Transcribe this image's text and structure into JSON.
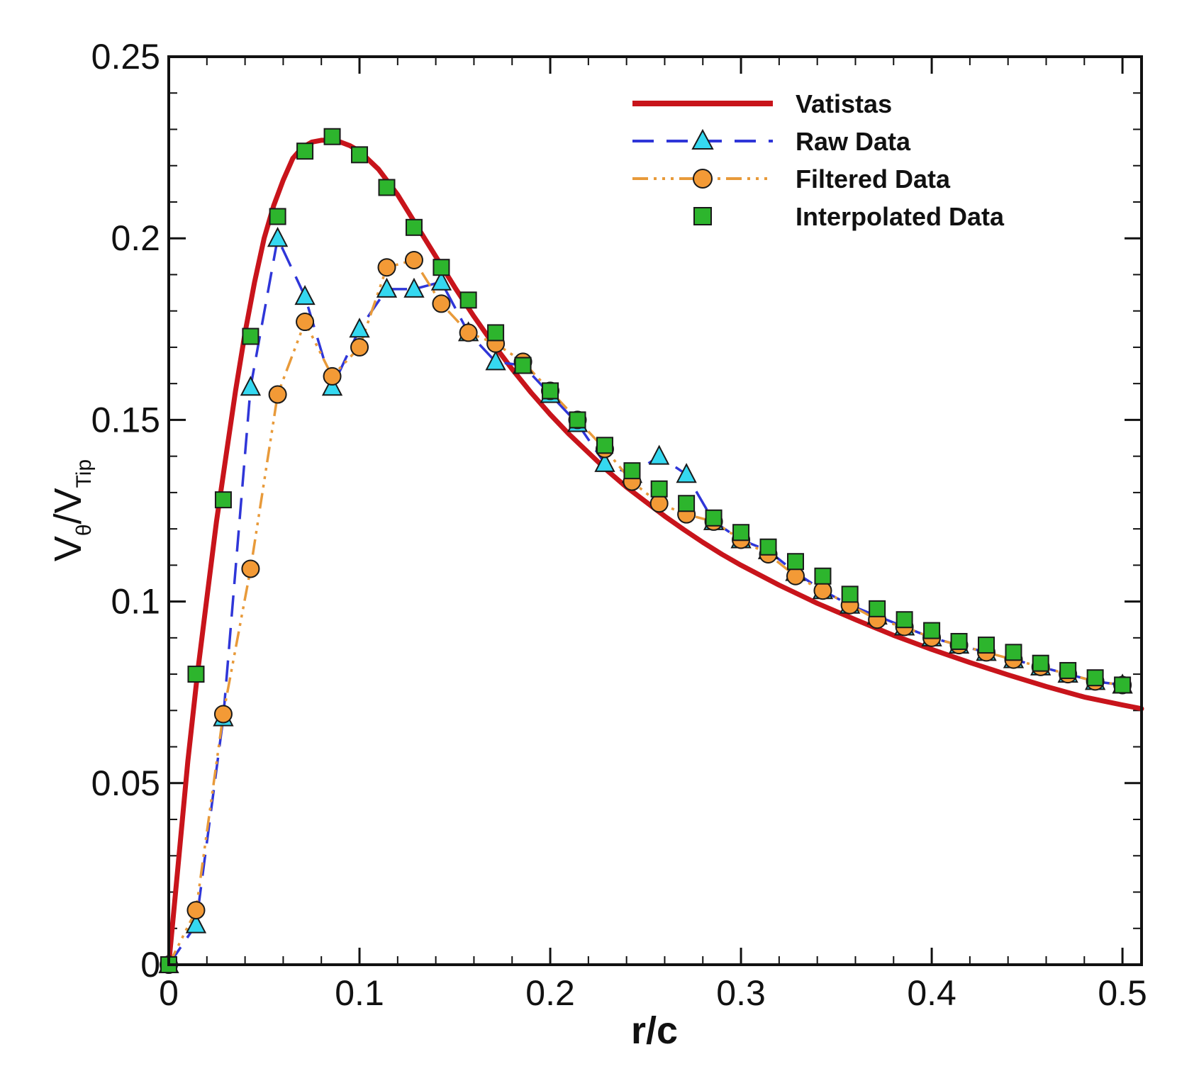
{
  "chart_data": {
    "type": "line",
    "title": "",
    "xlabel": "r/c",
    "ylabel_main": "V",
    "ylabel_sub1": "θ",
    "ylabel_mid": "/V",
    "ylabel_sub2": "Tip",
    "xlim": [
      0,
      0.51
    ],
    "ylim": [
      0,
      0.25
    ],
    "xticks": [
      0,
      0.1,
      0.2,
      0.3,
      0.4,
      0.5
    ],
    "xtick_labels": [
      "0",
      "0.1",
      "0.2",
      "0.3",
      "0.4",
      "0.5"
    ],
    "yticks": [
      0,
      0.05,
      0.1,
      0.15,
      0.2,
      0.25
    ],
    "ytick_labels": [
      "0",
      "0.05",
      "0.1",
      "0.15",
      "0.2",
      "0.25"
    ],
    "grid": false,
    "legend_position": "top-right",
    "vatistas": {
      "name": "Vatistas",
      "color": "#c8141b",
      "x": [
        0,
        0.005,
        0.01,
        0.015,
        0.02,
        0.025,
        0.03,
        0.035,
        0.04,
        0.045,
        0.05,
        0.055,
        0.06,
        0.065,
        0.07,
        0.075,
        0.08,
        0.085,
        0.09,
        0.095,
        0.1,
        0.11,
        0.12,
        0.13,
        0.14,
        0.15,
        0.16,
        0.17,
        0.18,
        0.19,
        0.2,
        0.21,
        0.22,
        0.23,
        0.24,
        0.25,
        0.26,
        0.27,
        0.28,
        0.29,
        0.3,
        0.32,
        0.34,
        0.36,
        0.38,
        0.4,
        0.42,
        0.44,
        0.46,
        0.48,
        0.5,
        0.51
      ],
      "y": [
        0,
        0.028,
        0.056,
        0.08,
        0.101,
        0.122,
        0.14,
        0.158,
        0.174,
        0.188,
        0.2,
        0.209,
        0.216,
        0.222,
        0.225,
        0.2265,
        0.227,
        0.227,
        0.2265,
        0.2255,
        0.224,
        0.219,
        0.212,
        0.2035,
        0.195,
        0.1865,
        0.1785,
        0.171,
        0.164,
        0.1575,
        0.1515,
        0.146,
        0.141,
        0.136,
        0.1315,
        0.1275,
        0.1235,
        0.1198,
        0.1163,
        0.113,
        0.11,
        0.1045,
        0.0995,
        0.095,
        0.0907,
        0.0868,
        0.0832,
        0.0798,
        0.0766,
        0.0737,
        0.0715,
        0.0705
      ]
    },
    "series": [
      {
        "name": "Raw Data",
        "color": "#2f36d8",
        "marker_fill": "#35d8f0",
        "marker": "triangle",
        "x": [
          0,
          0.0143,
          0.0286,
          0.0429,
          0.0571,
          0.0714,
          0.0857,
          0.1,
          0.1143,
          0.1286,
          0.1429,
          0.1571,
          0.1714,
          0.1857,
          0.2,
          0.2143,
          0.2286,
          0.2429,
          0.2571,
          0.2714,
          0.2857,
          0.3,
          0.3143,
          0.3286,
          0.3429,
          0.3571,
          0.3714,
          0.3857,
          0.4,
          0.4143,
          0.4286,
          0.4429,
          0.4571,
          0.4714,
          0.4857,
          0.5
        ],
        "values": [
          0,
          0.011,
          0.068,
          0.159,
          0.2,
          0.184,
          0.159,
          0.175,
          0.186,
          0.186,
          0.188,
          0.174,
          0.166,
          0.165,
          0.157,
          0.149,
          0.138,
          0.135,
          0.14,
          0.135,
          0.122,
          0.117,
          0.114,
          0.108,
          0.103,
          0.099,
          0.096,
          0.093,
          0.09,
          0.088,
          0.086,
          0.084,
          0.082,
          0.08,
          0.078,
          0.077
        ]
      },
      {
        "name": "Filtered Data",
        "color": "#e89a3a",
        "marker_fill": "#f39a36",
        "marker": "circle",
        "x": [
          0,
          0.0143,
          0.0286,
          0.0429,
          0.0571,
          0.0714,
          0.0857,
          0.1,
          0.1143,
          0.1286,
          0.1429,
          0.1571,
          0.1714,
          0.1857,
          0.2,
          0.2143,
          0.2286,
          0.2429,
          0.2571,
          0.2714,
          0.2857,
          0.3,
          0.3143,
          0.3286,
          0.3429,
          0.3571,
          0.3714,
          0.3857,
          0.4,
          0.4143,
          0.4286,
          0.4429,
          0.4571,
          0.4714,
          0.4857,
          0.5
        ],
        "values": [
          0,
          0.015,
          0.069,
          0.109,
          0.157,
          0.177,
          0.162,
          0.17,
          0.192,
          0.194,
          0.182,
          0.174,
          0.171,
          0.166,
          0.158,
          0.15,
          0.142,
          0.133,
          0.127,
          0.124,
          0.122,
          0.117,
          0.113,
          0.107,
          0.103,
          0.099,
          0.095,
          0.093,
          0.09,
          0.088,
          0.086,
          0.084,
          0.082,
          0.08,
          0.078,
          0.077
        ]
      },
      {
        "name": "Interpolated Data",
        "color": "#1a1a1a",
        "marker_fill": "#2db52d",
        "marker": "square",
        "x": [
          0,
          0.0143,
          0.0286,
          0.0429,
          0.0571,
          0.0714,
          0.0857,
          0.1,
          0.1143,
          0.1286,
          0.1429,
          0.1571,
          0.1714,
          0.1857,
          0.2,
          0.2143,
          0.2286,
          0.2429,
          0.2571,
          0.2714,
          0.2857,
          0.3,
          0.3143,
          0.3286,
          0.3429,
          0.3571,
          0.3714,
          0.3857,
          0.4,
          0.4143,
          0.4286,
          0.4429,
          0.4571,
          0.4714,
          0.4857,
          0.5
        ],
        "values": [
          0,
          0.08,
          0.128,
          0.173,
          0.206,
          0.224,
          0.228,
          0.223,
          0.214,
          0.203,
          0.192,
          0.183,
          0.174,
          0.165,
          0.158,
          0.15,
          0.143,
          0.136,
          0.131,
          0.127,
          0.123,
          0.119,
          0.115,
          0.111,
          0.107,
          0.102,
          0.098,
          0.095,
          0.092,
          0.089,
          0.088,
          0.086,
          0.083,
          0.081,
          0.079,
          0.077
        ]
      }
    ]
  }
}
